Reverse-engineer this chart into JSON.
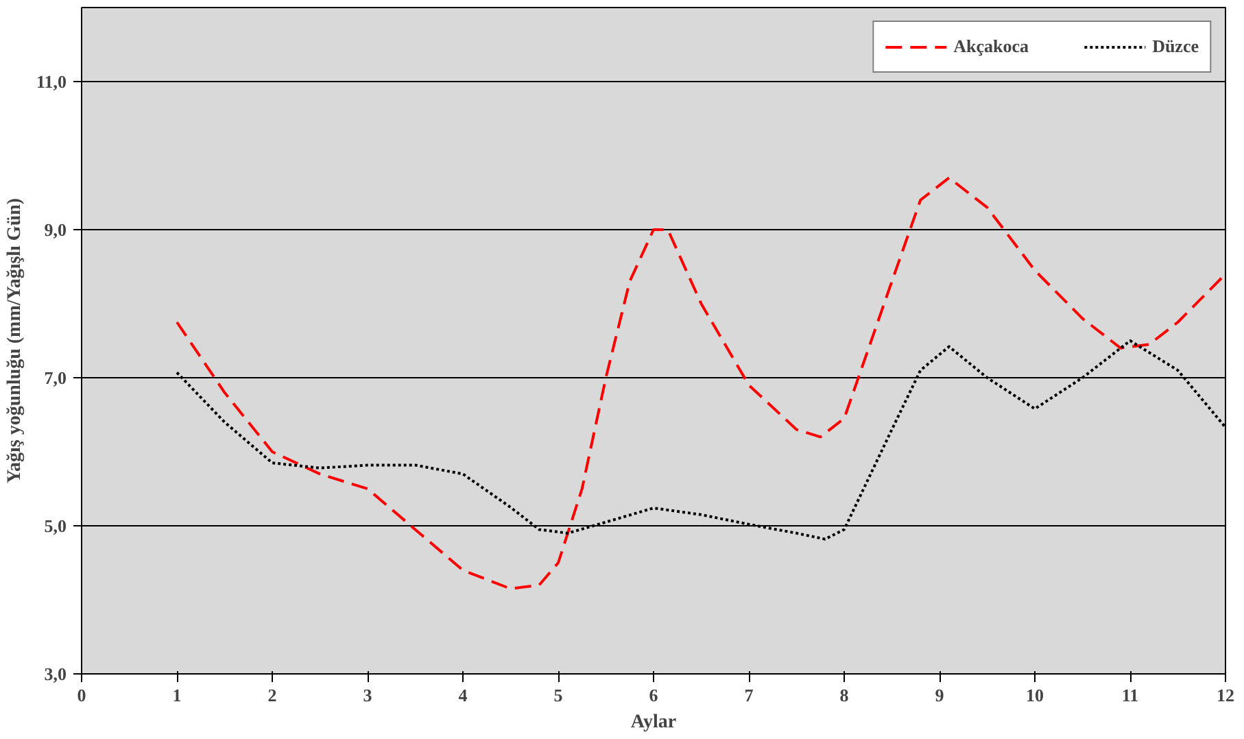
{
  "chart_data": {
    "type": "line",
    "xlabel": "Aylar",
    "ylabel": "Yağış yoğunluğu (mm/Yağışlı Gün)",
    "series": [
      {
        "name": "Akçakoca",
        "color": "#ff0000",
        "line_style": "dashed",
        "x": [
          1,
          1.5,
          2,
          2.5,
          3,
          3.5,
          4,
          4.5,
          4.8,
          5,
          5.25,
          5.5,
          5.75,
          6,
          6.15,
          6.5,
          7,
          7.5,
          7.75,
          8,
          8.5,
          8.8,
          9.1,
          9.5,
          10,
          10.5,
          10.9,
          11.2,
          11.5,
          12
        ],
        "values": [
          7.75,
          6.8,
          6.0,
          5.7,
          5.5,
          4.95,
          4.4,
          4.15,
          4.2,
          4.5,
          5.5,
          7.0,
          8.3,
          9.0,
          9.0,
          8.0,
          6.9,
          6.3,
          6.2,
          6.45,
          8.3,
          9.4,
          9.7,
          9.3,
          8.45,
          7.8,
          7.4,
          7.45,
          7.75,
          8.4
        ]
      },
      {
        "name": "Düzce",
        "color": "#000000",
        "line_style": "dotted",
        "x": [
          1,
          1.5,
          2,
          2.5,
          3,
          3.5,
          4,
          4.5,
          4.8,
          5.1,
          5.5,
          6,
          6.5,
          7,
          7.5,
          7.8,
          8,
          8.5,
          8.8,
          9.1,
          9.5,
          10,
          10.5,
          11,
          11.5,
          12
        ],
        "values": [
          7.07,
          6.4,
          5.85,
          5.78,
          5.82,
          5.82,
          5.7,
          5.25,
          4.95,
          4.9,
          5.05,
          5.24,
          5.15,
          5.02,
          4.9,
          4.82,
          4.95,
          6.3,
          7.1,
          7.42,
          7.0,
          6.58,
          7.0,
          7.5,
          7.1,
          6.33
        ]
      }
    ],
    "xlim": [
      0,
      12
    ],
    "ylim": [
      3,
      12
    ],
    "xticks": [
      0,
      1,
      2,
      3,
      4,
      5,
      6,
      7,
      8,
      9,
      10,
      11,
      12
    ],
    "yticks": [
      {
        "value": 3,
        "label": "3,0"
      },
      {
        "value": 5,
        "label": "5,0"
      },
      {
        "value": 7,
        "label": "7,0"
      },
      {
        "value": 9,
        "label": "9,0"
      },
      {
        "value": 11,
        "label": "11,0"
      }
    ],
    "grid": "y",
    "legend": "top right",
    "marker": "none"
  }
}
